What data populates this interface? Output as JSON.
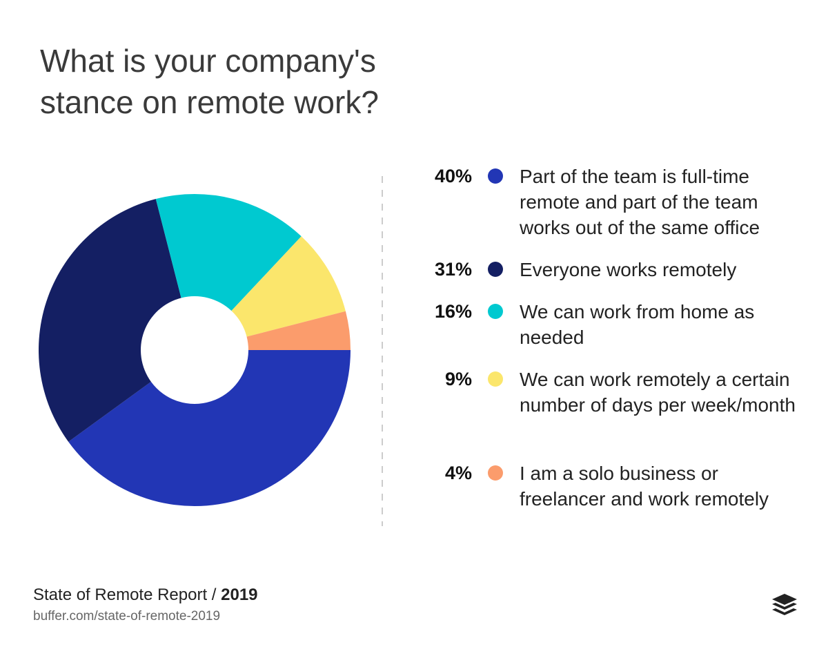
{
  "chart_data": {
    "type": "donut",
    "title": "What is your company's stance on remote work?",
    "categories": [
      "Part of the team is full-time remote and part of the team works out of the same office",
      "Everyone works remotely",
      "We can work from home as needed",
      "We can work remotely a certain number of days per week/month",
      "I am a solo business or freelancer and work remotely"
    ],
    "values": [
      40,
      31,
      16,
      9,
      4
    ],
    "value_labels": [
      "40%",
      "31%",
      "16%",
      "9%",
      "4%"
    ],
    "colors": [
      "#2236b5",
      "#141f63",
      "#00c9d0",
      "#fbe66c",
      "#fb9c6c"
    ]
  },
  "footer": {
    "report": "State of Remote Report /",
    "year": "2019",
    "url": "buffer.com/state-of-remote-2019"
  }
}
